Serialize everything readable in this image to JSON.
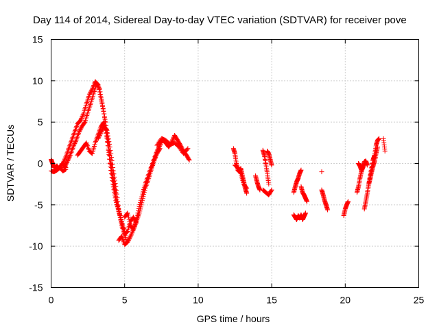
{
  "chart_data": {
    "type": "scatter",
    "title": "Day 114 of 2014, Sidereal Day-to-day VTEC variation (SDTVAR) for receiver pove",
    "xlabel": "GPS time / hours",
    "ylabel": "SDTVAR / TECUs",
    "xlim": [
      0,
      25
    ],
    "ylim": [
      -15,
      15
    ],
    "xticks": [
      0,
      5,
      10,
      15,
      20,
      25
    ],
    "yticks": [
      -15,
      -10,
      -5,
      0,
      5,
      10,
      15
    ],
    "grid": true,
    "marker": "+",
    "marker_color": "#ff0000",
    "segments": [
      {
        "name": "arc-early-1",
        "x": [
          0,
          0.1,
          0.2,
          0.3,
          0.4,
          0.5,
          0.6,
          0.7,
          0.8,
          0.9,
          1.0
        ],
        "y": [
          0.5,
          0.0,
          -0.5,
          -0.5,
          -0.3,
          -0.6,
          -0.4,
          -0.2,
          0.0,
          -0.3,
          -0.5
        ]
      },
      {
        "name": "arc-early-2",
        "x": [
          0,
          0.2,
          0.4,
          0.6,
          0.8,
          1.0
        ],
        "y": [
          -0.9,
          -1.0,
          -0.8,
          -0.5,
          -0.9,
          -0.7
        ]
      },
      {
        "name": "arc-rise-1",
        "x": [
          0.8,
          1.0,
          1.2,
          1.4,
          1.6,
          1.8,
          2.0,
          2.2,
          2.4,
          2.6,
          2.8,
          3.0,
          3.2,
          3.4,
          3.6,
          3.8,
          4.0,
          4.2,
          4.4,
          4.6,
          4.8,
          5.0
        ],
        "y": [
          0.0,
          0.8,
          1.8,
          2.8,
          3.8,
          4.8,
          5.2,
          6.0,
          7.2,
          8.3,
          9.0,
          9.9,
          9.5,
          7.8,
          6.0,
          3.2,
          0.0,
          -2.5,
          -4.5,
          -5.8,
          -7.2,
          -8.2
        ]
      },
      {
        "name": "arc-rise-2",
        "x": [
          0.9,
          1.1,
          1.3,
          1.5,
          1.7,
          1.9,
          2.1,
          2.3,
          2.5,
          2.7,
          2.9,
          3.1,
          3.3,
          3.5,
          3.7,
          3.9,
          4.1,
          4.3,
          4.5,
          4.7,
          4.9,
          5.1
        ],
        "y": [
          -0.5,
          0.2,
          1.0,
          2.0,
          2.8,
          3.8,
          4.5,
          5.0,
          6.2,
          7.3,
          8.5,
          9.7,
          9.0,
          7.0,
          5.0,
          2.5,
          -0.5,
          -3.0,
          -5.0,
          -6.3,
          -7.8,
          -9.2
        ]
      },
      {
        "name": "arc-mid-1",
        "x": [
          1.8,
          2.0,
          2.2,
          2.4,
          2.6,
          2.8,
          3.0,
          3.2,
          3.4,
          3.6,
          3.8,
          4.0,
          4.2,
          4.4
        ],
        "y": [
          1.0,
          1.5,
          2.0,
          2.5,
          1.5,
          1.2,
          2.5,
          3.5,
          4.5,
          5.0,
          3.0,
          0.5,
          -1.5,
          -3.5
        ]
      },
      {
        "name": "arc-mid-2",
        "x": [
          3.2,
          3.4,
          3.6,
          3.8,
          4.0,
          4.2,
          4.4,
          4.6,
          4.8,
          5.0,
          5.2,
          5.4,
          5.6,
          5.8
        ],
        "y": [
          3.0,
          3.8,
          4.5,
          4.0,
          2.0,
          -0.5,
          -2.8,
          -5.5,
          -7.5,
          -8.6,
          -8.2,
          -7.0,
          -6.5,
          -7.2
        ]
      },
      {
        "name": "arc-dip-1",
        "x": [
          4.6,
          4.8,
          5.0,
          5.2,
          5.4,
          5.6,
          5.8,
          6.0,
          6.2,
          6.4,
          6.6,
          6.8,
          7.0,
          7.2,
          7.4
        ],
        "y": [
          -9.3,
          -8.8,
          -9.8,
          -9.5,
          -8.8,
          -8.0,
          -7.0,
          -6.0,
          -4.5,
          -3.0,
          -2.0,
          -0.8,
          0.3,
          1.2,
          1.8
        ]
      },
      {
        "name": "arc-dip-2",
        "x": [
          5.0,
          5.2,
          5.4,
          5.6,
          5.8,
          6.0,
          6.2,
          6.4,
          6.6,
          6.8,
          7.0,
          7.2,
          7.4,
          7.6
        ],
        "y": [
          -6.5,
          -6.0,
          -7.5,
          -8.0,
          -6.8,
          -5.2,
          -3.8,
          -2.5,
          -1.5,
          -0.5,
          0.5,
          1.5,
          2.2,
          3.0
        ]
      },
      {
        "name": "arc-hump",
        "x": [
          7.4,
          7.6,
          7.8,
          8.0,
          8.2,
          8.4,
          8.6,
          8.8,
          9.0,
          9.2,
          9.4
        ],
        "y": [
          2.6,
          2.8,
          2.5,
          2.0,
          2.6,
          3.4,
          2.8,
          2.2,
          1.5,
          1.0,
          0.4
        ]
      },
      {
        "name": "arc-hump-2",
        "x": [
          7.2,
          7.5,
          7.8,
          8.1,
          8.4,
          8.7,
          9.0,
          9.3
        ],
        "y": [
          2.2,
          3.0,
          2.8,
          2.3,
          2.5,
          2.0,
          1.2,
          1.8
        ]
      },
      {
        "name": "arc-12h-1",
        "x": [
          12.4,
          12.5,
          12.6,
          12.7,
          12.8,
          12.9,
          13.0,
          13.1,
          13.2,
          13.3
        ],
        "y": [
          1.8,
          1.2,
          0.0,
          -0.8,
          -1.0,
          -0.6,
          -1.4,
          -2.2,
          -3.0,
          -3.6
        ]
      },
      {
        "name": "arc-12h-2",
        "x": [
          12.5,
          12.7,
          12.9,
          13.1,
          13.3
        ],
        "y": [
          -0.2,
          -0.5,
          -1.2,
          -2.5,
          -3.0
        ]
      },
      {
        "name": "arc-14h-1",
        "x": [
          13.9,
          14.0,
          14.1,
          14.2
        ],
        "y": [
          -1.5,
          -2.2,
          -2.8,
          -3.2
        ]
      },
      {
        "name": "arc-14h-2",
        "x": [
          14.4,
          14.5,
          14.6,
          14.7,
          14.8
        ],
        "y": [
          1.6,
          1.0,
          0.0,
          -1.2,
          -2.5
        ]
      },
      {
        "name": "arc-14h-3",
        "x": [
          14.4,
          14.6,
          14.8,
          15.0
        ],
        "y": [
          -3.2,
          -3.5,
          -3.8,
          -3.2
        ]
      },
      {
        "name": "arc-14h-4",
        "x": [
          14.7,
          14.8,
          14.9,
          15.0
        ],
        "y": [
          1.5,
          1.2,
          0.5,
          -0.2
        ]
      },
      {
        "name": "arc-17h-1",
        "x": [
          16.5,
          16.6,
          16.7,
          16.8,
          16.9,
          17.0,
          17.1,
          17.2,
          17.3
        ],
        "y": [
          -6.2,
          -6.5,
          -6.8,
          -6.3,
          -6.6,
          -6.2,
          -6.8,
          -6.4,
          -6.0
        ]
      },
      {
        "name": "arc-17h-2",
        "x": [
          16.5,
          16.6,
          16.7,
          16.8,
          16.9,
          17.0
        ],
        "y": [
          -3.5,
          -2.8,
          -2.2,
          -1.8,
          -1.2,
          -0.8
        ]
      },
      {
        "name": "arc-17h-3",
        "x": [
          17.0,
          17.1,
          17.2,
          17.3,
          17.4
        ],
        "y": [
          -2.8,
          -3.5,
          -3.8,
          -4.2,
          -4.6
        ]
      },
      {
        "name": "arc-18h",
        "x": [
          18.4,
          18.5,
          18.6,
          18.7,
          18.8
        ],
        "y": [
          -3.2,
          -3.8,
          -4.5,
          -5.0,
          -5.6
        ]
      },
      {
        "name": "arc-18h-single",
        "x": [
          18.4
        ],
        "y": [
          -1.0
        ]
      },
      {
        "name": "arc-20h",
        "x": [
          19.9,
          20.0,
          20.1,
          20.2
        ],
        "y": [
          -6.3,
          -5.5,
          -5.0,
          -4.6
        ]
      },
      {
        "name": "arc-21h-1",
        "x": [
          20.8,
          20.9,
          21.0,
          21.1,
          21.2,
          21.3
        ],
        "y": [
          -3.5,
          -2.8,
          -1.8,
          -1.0,
          -0.4,
          0.0
        ]
      },
      {
        "name": "arc-21h-2",
        "x": [
          20.9,
          21.0,
          21.1,
          21.2,
          21.3,
          21.4,
          21.5
        ],
        "y": [
          0.0,
          -0.3,
          -0.8,
          -0.5,
          0.2,
          0.3,
          -0.2
        ]
      },
      {
        "name": "arc-21h-3",
        "x": [
          21.3,
          21.4,
          21.5,
          21.6,
          21.7,
          21.8,
          21.9,
          22.0
        ],
        "y": [
          -5.5,
          -4.6,
          -3.6,
          -2.5,
          -1.5,
          -0.5,
          0.5,
          1.0
        ]
      },
      {
        "name": "arc-22h-1",
        "x": [
          21.6,
          21.7,
          21.8,
          21.9,
          22.0,
          22.1,
          22.2
        ],
        "y": [
          -2.5,
          -1.8,
          -1.0,
          -0.3,
          0.3,
          1.2,
          2.0
        ]
      },
      {
        "name": "arc-22h-2",
        "x": [
          22.0,
          22.1,
          22.2,
          22.3
        ],
        "y": [
          1.0,
          2.2,
          2.8,
          3.0
        ]
      },
      {
        "name": "arc-22h-3",
        "x": [
          22.6,
          22.7
        ],
        "y": [
          3.0,
          1.5
        ]
      }
    ]
  }
}
